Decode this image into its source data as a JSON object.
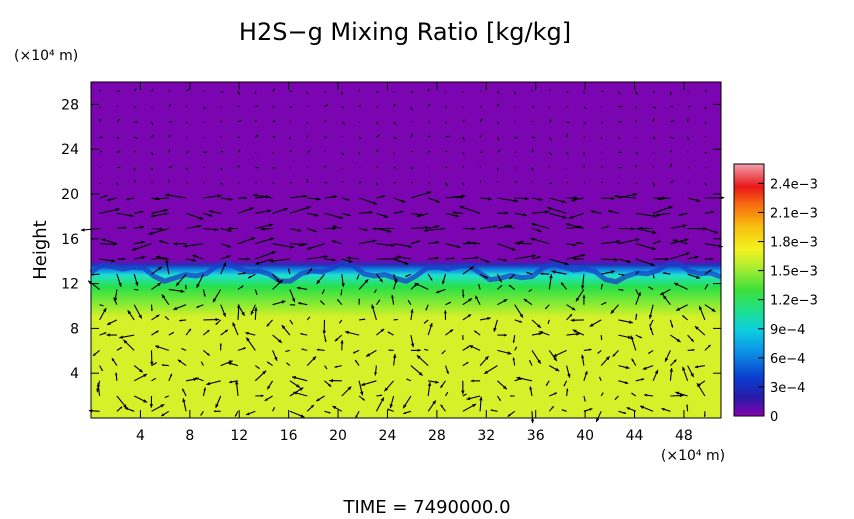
{
  "chart_data": {
    "type": "heatmap",
    "title": "H2S−g Mixing Ratio [kg/kg]",
    "ylabel": "Height",
    "y_unit_label": "(×10⁴ m)",
    "x_unit_label": "(×10⁴ m)",
    "footer": "TIME  =  7490000.0",
    "xlim": [
      0,
      51
    ],
    "ylim": [
      0,
      30
    ],
    "x_ticks": [
      "4",
      "8",
      "12",
      "16",
      "20",
      "24",
      "28",
      "32",
      "36",
      "40",
      "44",
      "48"
    ],
    "y_ticks": [
      "4",
      "8",
      "12",
      "16",
      "20",
      "24",
      "28"
    ],
    "colorbar": {
      "range": [
        0,
        0.0026
      ],
      "tick_values": [
        0,
        0.0003,
        0.0006,
        0.0009,
        0.0012,
        0.0015,
        0.0018,
        0.0021,
        0.0024
      ],
      "tick_labels": [
        "0",
        "3e−4",
        "6e−4",
        "9e−4",
        "1.2e−3",
        "1.5e−3",
        "1.8e−3",
        "2.1e−3",
        "2.4e−3"
      ]
    },
    "field": {
      "bottom_layer": {
        "height_range": [
          0,
          9.5
        ],
        "value": 0.0017
      },
      "transition_layer": {
        "height_range": [
          9.5,
          12.5
        ],
        "value": 0.0013
      },
      "interface_band": {
        "height_range": [
          12.5,
          14
        ],
        "value": 0.0005
      },
      "top_layer": {
        "height_range": [
          14,
          30
        ],
        "value": 0
      }
    },
    "vectors": "wind arrows on a regular grid over the domain"
  }
}
